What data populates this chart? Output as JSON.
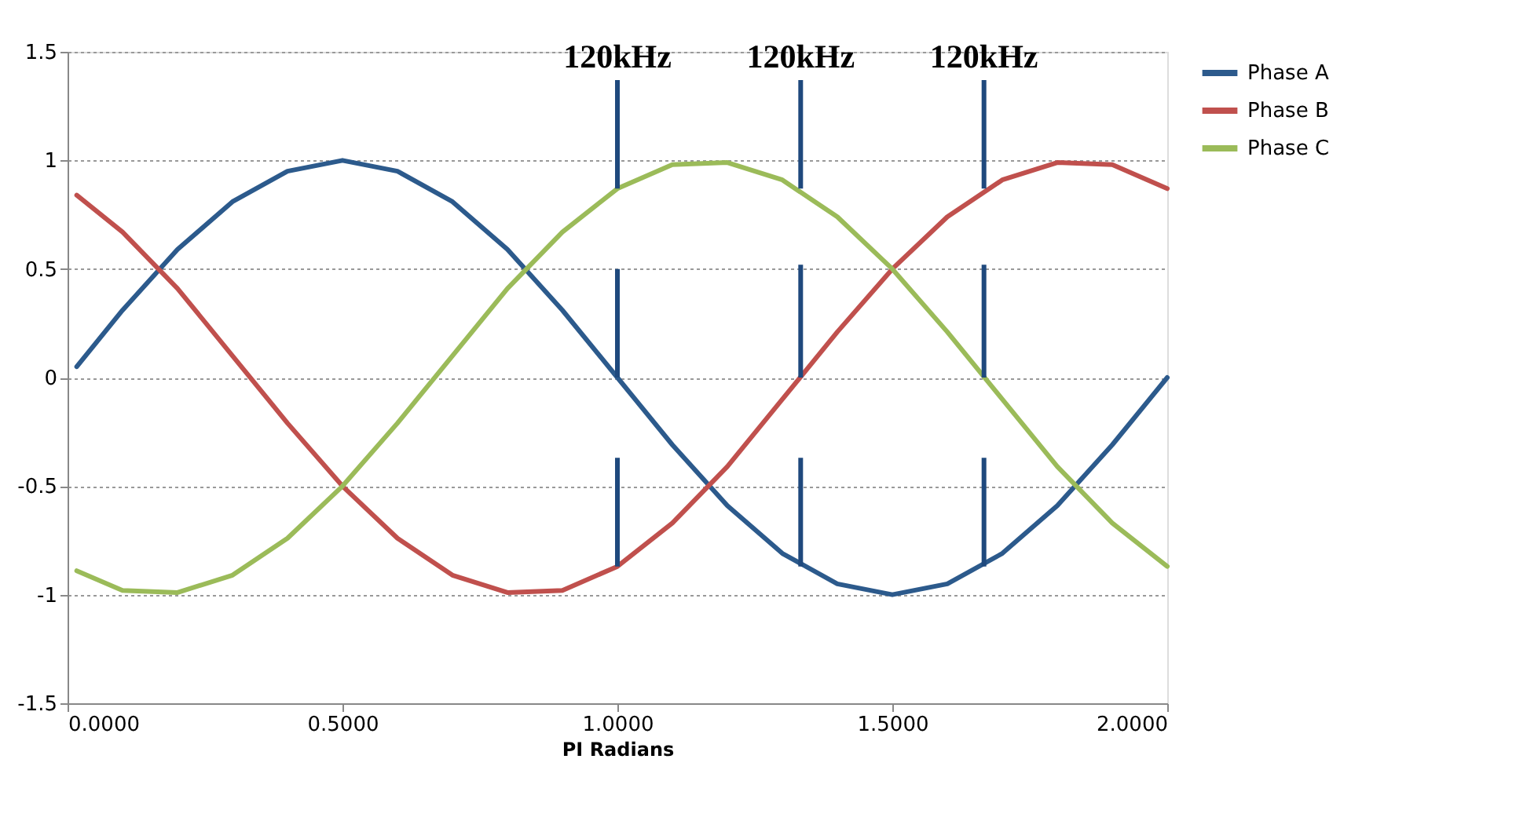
{
  "chart_data": {
    "type": "line",
    "xlabel": "PI Radians",
    "x": [
      0.0167,
      0.1,
      0.2,
      0.3,
      0.4,
      0.5,
      0.6,
      0.7,
      0.8,
      0.9,
      1.0,
      1.1,
      1.2,
      1.3,
      1.4,
      1.5,
      1.6,
      1.7,
      1.8,
      1.9,
      2.0
    ],
    "series": [
      {
        "name": "Phase A",
        "color": "#2c5a8c",
        "values": [
          0.05,
          0.31,
          0.59,
          0.81,
          0.95,
          1.0,
          0.95,
          0.81,
          0.59,
          0.31,
          0.0,
          -0.31,
          -0.59,
          -0.81,
          -0.95,
          -1.0,
          -0.95,
          -0.81,
          -0.59,
          -0.31,
          0.0
        ]
      },
      {
        "name": "Phase B",
        "color": "#c0504d",
        "values": [
          0.84,
          0.67,
          0.41,
          0.1,
          -0.21,
          -0.5,
          -0.74,
          -0.91,
          -0.99,
          -0.98,
          -0.87,
          -0.67,
          -0.41,
          -0.1,
          0.21,
          0.5,
          0.74,
          0.91,
          0.99,
          0.98,
          0.87
        ]
      },
      {
        "name": "Phase C",
        "color": "#9bbb59",
        "values": [
          -0.89,
          -0.98,
          -0.99,
          -0.91,
          -0.74,
          -0.5,
          -0.21,
          0.1,
          0.41,
          0.67,
          0.87,
          0.98,
          0.99,
          0.91,
          0.74,
          0.5,
          0.21,
          -0.1,
          -0.41,
          -0.67,
          -0.87
        ]
      },
      {
        "color": "#1f497d",
        "x": [
          1.0,
          1.0
        ],
        "values": [
          0.87,
          1.37
        ]
      },
      {
        "color": "#1f497d",
        "x": [
          1.0,
          1.0
        ],
        "values": [
          0.0,
          0.5
        ]
      },
      {
        "color": "#1f497d",
        "x": [
          1.0,
          1.0
        ],
        "values": [
          -0.87,
          -0.37
        ]
      },
      {
        "color": "#1f497d",
        "x": [
          1.3333,
          1.3333
        ],
        "values": [
          0.87,
          1.37
        ]
      },
      {
        "color": "#1f497d",
        "x": [
          1.3333,
          1.3333
        ],
        "values": [
          0.0,
          0.52
        ]
      },
      {
        "color": "#1f497d",
        "x": [
          1.3333,
          1.3333
        ],
        "values": [
          -0.87,
          -0.37
        ]
      },
      {
        "color": "#1f497d",
        "x": [
          1.6667,
          1.6667
        ],
        "values": [
          0.87,
          1.37
        ]
      },
      {
        "color": "#1f497d",
        "x": [
          1.6667,
          1.6667
        ],
        "values": [
          0.0,
          0.52
        ]
      },
      {
        "color": "#1f497d",
        "x": [
          1.6667,
          1.6667
        ],
        "values": [
          -0.87,
          -0.37
        ]
      }
    ],
    "annotations": [
      {
        "text": "120kHz",
        "x": 1.0,
        "y": 1.37
      },
      {
        "text": "120kHz",
        "x": 1.3333,
        "y": 1.37
      },
      {
        "text": "120kHz",
        "x": 1.6667,
        "y": 1.37
      }
    ],
    "xlim": [
      0,
      2
    ],
    "xticks": [
      {
        "value": 0,
        "label": "0.0000"
      },
      {
        "value": 0.5,
        "label": "0.5000"
      },
      {
        "value": 1,
        "label": "1.0000"
      },
      {
        "value": 1.5,
        "label": "1.5000"
      },
      {
        "value": 2,
        "label": "2.0000"
      }
    ],
    "ylim": [
      -1.5,
      1.5
    ],
    "yticks": [
      -1.5,
      -1,
      -0.5,
      0,
      0.5,
      1,
      1.5
    ],
    "grid": "y",
    "legend": "right",
    "marker": "none",
    "line_style": "solid"
  }
}
